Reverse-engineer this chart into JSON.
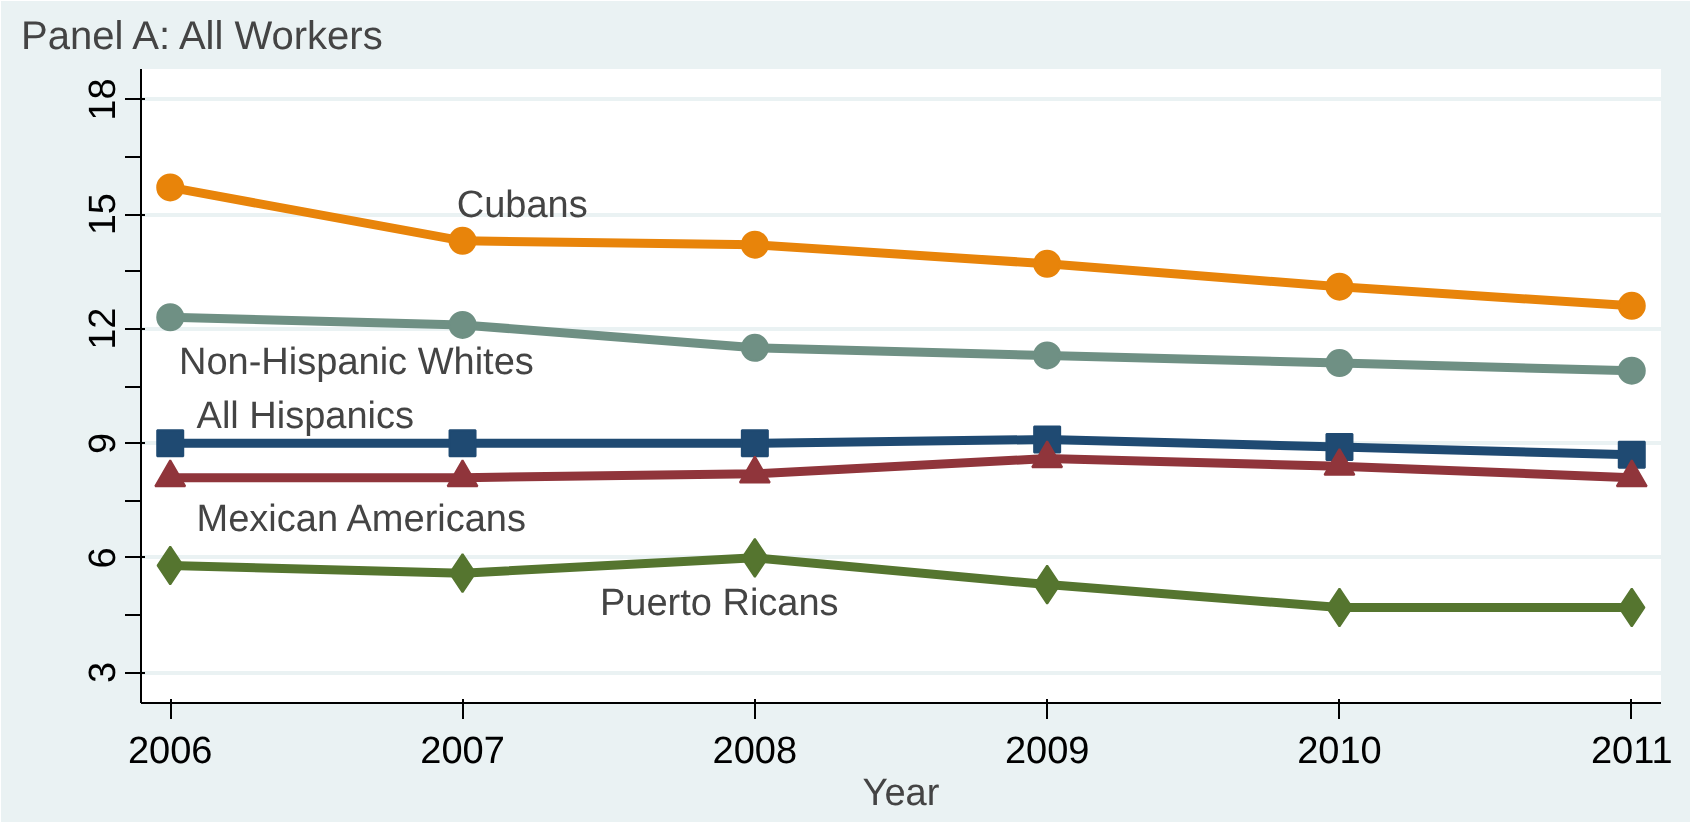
{
  "chart_data": {
    "type": "line",
    "title": "Panel A: All Workers",
    "xlabel": "Year",
    "x": [
      2006,
      2007,
      2008,
      2009,
      2010,
      2011
    ],
    "series": [
      {
        "name": "Cubans",
        "color": "#e8840a",
        "marker": "circle",
        "values": [
          15.7,
          14.3,
          14.2,
          13.7,
          13.1,
          12.6
        ]
      },
      {
        "name": "Non-Hispanic Whites",
        "color": "#6f9084",
        "marker": "circle",
        "values": [
          12.3,
          12.1,
          11.5,
          11.3,
          11.1,
          10.9
        ]
      },
      {
        "name": "All Hispanics",
        "color": "#1f4a72",
        "marker": "square",
        "values": [
          9.0,
          9.0,
          9.0,
          9.1,
          8.9,
          8.7
        ]
      },
      {
        "name": "Mexican Americans",
        "color": "#90353b",
        "marker": "triangle",
        "values": [
          8.1,
          8.1,
          8.2,
          8.6,
          8.4,
          8.1
        ]
      },
      {
        "name": "Puerto Ricans",
        "color": "#55752f",
        "marker": "diamond",
        "values": [
          5.8,
          5.6,
          6.0,
          5.3,
          4.7,
          4.7
        ]
      }
    ],
    "xlim": [
      2005.9,
      2011.1
    ],
    "ylim": [
      2.2,
      18.8
    ],
    "xticks": [
      2006,
      2007,
      2008,
      2009,
      2010,
      2011
    ],
    "yticks": [
      3,
      6,
      9,
      12,
      15,
      18
    ],
    "grid": "y"
  }
}
